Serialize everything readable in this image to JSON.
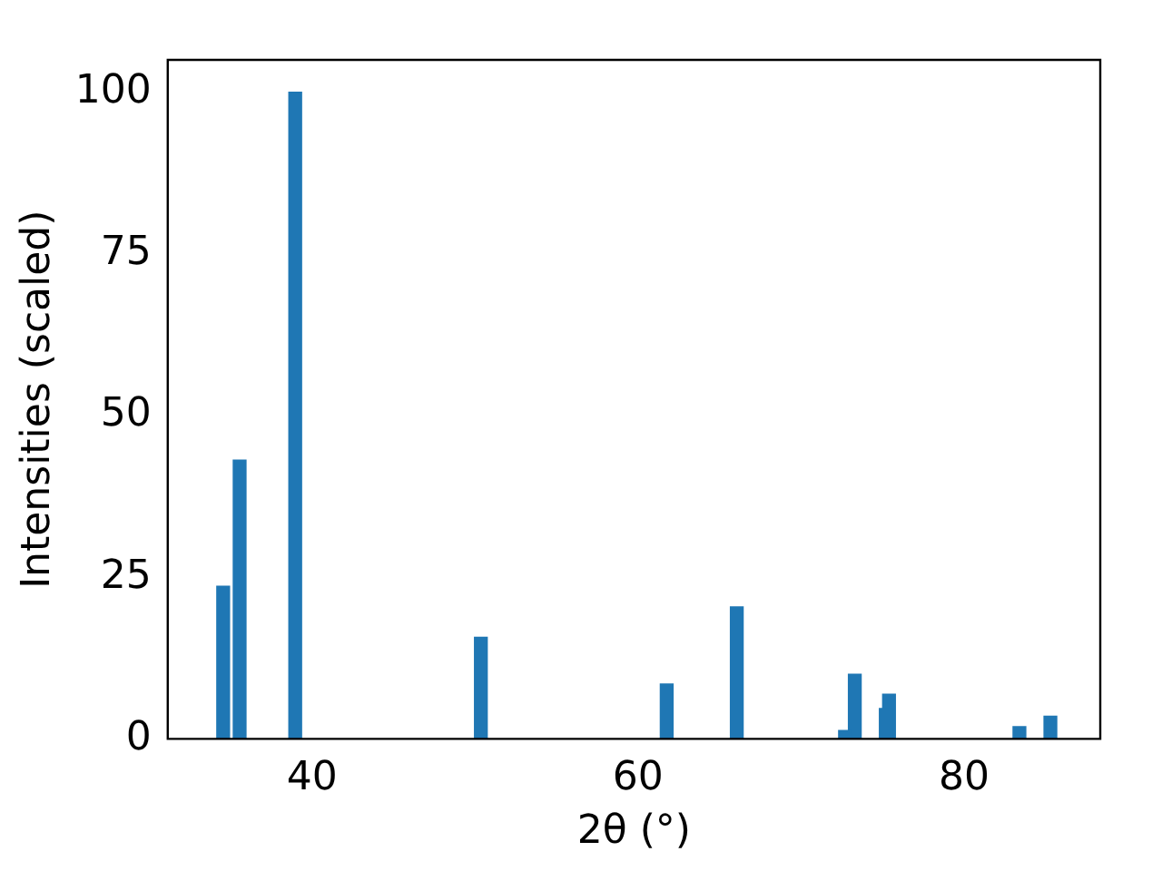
{
  "chart_data": {
    "type": "bar",
    "xlabel": "2θ (°)",
    "ylabel": "Intensities (scaled)",
    "x": [
      34.55,
      35.56,
      38.97,
      50.36,
      61.76,
      66.06,
      72.7,
      73.3,
      75.2,
      75.4,
      83.4,
      85.3
    ],
    "values": [
      23.6,
      43.1,
      100,
      15.7,
      8.5,
      20.4,
      1.3,
      10,
      4.7,
      6.9,
      1.9,
      3.5
    ],
    "color": "#1f77b4",
    "xlim": [
      31.15,
      88.36
    ],
    "xticks": [
      40,
      60,
      80
    ],
    "ylim": [
      0,
      105
    ],
    "yticks": [
      0,
      25,
      50,
      75,
      100
    ],
    "grid": false,
    "legend": false
  }
}
